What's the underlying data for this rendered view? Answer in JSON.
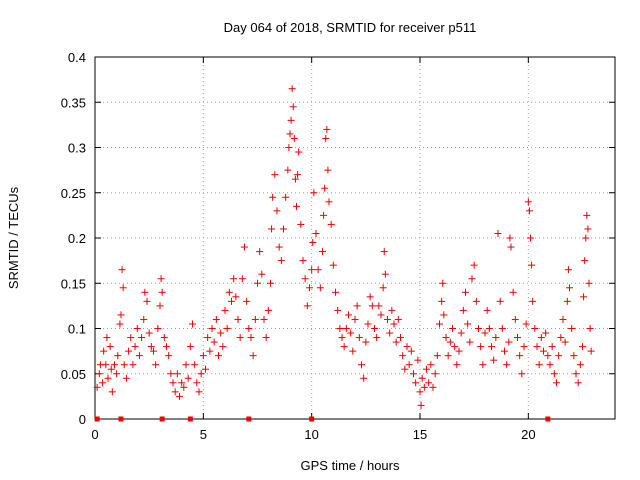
{
  "chart_data": {
    "type": "scatter",
    "title": "Day 064 of 2018, SRMTID for receiver p511",
    "xlabel": "GPS time / hours",
    "ylabel": "SRMTID / TECUs",
    "xlim": [
      0,
      24
    ],
    "ylim": [
      0,
      0.4
    ],
    "xticks": [
      0,
      5,
      10,
      15,
      20
    ],
    "xtick_labels": [
      "0",
      "5",
      "10",
      "15",
      "20"
    ],
    "yticks": [
      0,
      0.05,
      0.1,
      0.15,
      0.2,
      0.25,
      0.3,
      0.35,
      0.4
    ],
    "ytick_labels": [
      "0",
      "0.05",
      "0.1",
      "0.15",
      "0.2",
      "0.25",
      "0.3",
      "0.35",
      "0.4"
    ],
    "grid": true,
    "marker": "+",
    "color": "#ee0000",
    "series": [
      {
        "name": "SRMTID",
        "points": [
          [
            0.1,
            0.035
          ],
          [
            0.2,
            0.05
          ],
          [
            0.25,
            0.06
          ],
          [
            0.35,
            0.04
          ],
          [
            0.4,
            0.075
          ],
          [
            0.5,
            0.06
          ],
          [
            0.55,
            0.09
          ],
          [
            0.6,
            0.045
          ],
          [
            0.7,
            0.08
          ],
          [
            0.75,
            0.055
          ],
          [
            0.8,
            0.03
          ],
          [
            0.9,
            0.06
          ],
          [
            1.0,
            0.05
          ],
          [
            1.05,
            0.07
          ],
          [
            1.15,
            0.105
          ],
          [
            1.2,
            0.115
          ],
          [
            1.25,
            0.165
          ],
          [
            1.3,
            0.145
          ],
          [
            1.35,
            0.06
          ],
          [
            1.45,
            0.045
          ],
          [
            1.55,
            0.075
          ],
          [
            1.65,
            0.09
          ],
          [
            1.75,
            0.06
          ],
          [
            1.85,
            0.08
          ],
          [
            1.95,
            0.1
          ],
          [
            2.05,
            0.07
          ],
          [
            2.15,
            0.09
          ],
          [
            2.25,
            0.11
          ],
          [
            2.3,
            0.14
          ],
          [
            2.4,
            0.13
          ],
          [
            2.5,
            0.095
          ],
          [
            2.6,
            0.08
          ],
          [
            2.7,
            0.075
          ],
          [
            2.8,
            0.06
          ],
          [
            2.9,
            0.1
          ],
          [
            3.0,
            0.125
          ],
          [
            3.05,
            0.155
          ],
          [
            3.1,
            0.14
          ],
          [
            3.2,
            0.09
          ],
          [
            3.3,
            0.08
          ],
          [
            3.4,
            0.07
          ],
          [
            3.5,
            0.05
          ],
          [
            3.6,
            0.04
          ],
          [
            3.7,
            0.03
          ],
          [
            3.8,
            0.05
          ],
          [
            3.9,
            0.025
          ],
          [
            4.0,
            0.04
          ],
          [
            4.1,
            0.035
          ],
          [
            4.2,
            0.06
          ],
          [
            4.3,
            0.045
          ],
          [
            4.4,
            0.08
          ],
          [
            4.5,
            0.105
          ],
          [
            4.6,
            0.06
          ],
          [
            4.7,
            0.04
          ],
          [
            4.8,
            0.03
          ],
          [
            4.9,
            0.05
          ],
          [
            5.0,
            0.07
          ],
          [
            5.1,
            0.055
          ],
          [
            5.2,
            0.09
          ],
          [
            5.3,
            0.075
          ],
          [
            5.4,
            0.1
          ],
          [
            5.5,
            0.085
          ],
          [
            5.6,
            0.11
          ],
          [
            5.7,
            0.07
          ],
          [
            5.8,
            0.095
          ],
          [
            5.9,
            0.08
          ],
          [
            6.0,
            0.12
          ],
          [
            6.1,
            0.1
          ],
          [
            6.2,
            0.14
          ],
          [
            6.3,
            0.13
          ],
          [
            6.4,
            0.155
          ],
          [
            6.5,
            0.135
          ],
          [
            6.6,
            0.11
          ],
          [
            6.7,
            0.09
          ],
          [
            6.8,
            0.155
          ],
          [
            6.9,
            0.19
          ],
          [
            7.0,
            0.13
          ],
          [
            7.1,
            0.1
          ],
          [
            7.2,
            0.09
          ],
          [
            7.3,
            0.07
          ],
          [
            7.4,
            0.11
          ],
          [
            7.5,
            0.15
          ],
          [
            7.6,
            0.185
          ],
          [
            7.7,
            0.16
          ],
          [
            7.8,
            0.11
          ],
          [
            7.9,
            0.09
          ],
          [
            8.0,
            0.12
          ],
          [
            8.1,
            0.15
          ],
          [
            8.15,
            0.21
          ],
          [
            8.2,
            0.245
          ],
          [
            8.3,
            0.27
          ],
          [
            8.4,
            0.23
          ],
          [
            8.5,
            0.19
          ],
          [
            8.6,
            0.175
          ],
          [
            8.7,
            0.21
          ],
          [
            8.8,
            0.245
          ],
          [
            8.9,
            0.275
          ],
          [
            8.95,
            0.3
          ],
          [
            9.0,
            0.315
          ],
          [
            9.05,
            0.33
          ],
          [
            9.1,
            0.365
          ],
          [
            9.15,
            0.345
          ],
          [
            9.2,
            0.31
          ],
          [
            9.25,
            0.265
          ],
          [
            9.3,
            0.235
          ],
          [
            9.35,
            0.27
          ],
          [
            9.4,
            0.295
          ],
          [
            9.5,
            0.215
          ],
          [
            9.6,
            0.175
          ],
          [
            9.7,
            0.155
          ],
          [
            9.8,
            0.125
          ],
          [
            9.9,
            0.145
          ],
          [
            10.0,
            0.165
          ],
          [
            10.05,
            0.195
          ],
          [
            10.1,
            0.25
          ],
          [
            10.2,
            0.205
          ],
          [
            10.3,
            0.165
          ],
          [
            10.4,
            0.145
          ],
          [
            10.5,
            0.185
          ],
          [
            10.55,
            0.225
          ],
          [
            10.6,
            0.255
          ],
          [
            10.65,
            0.31
          ],
          [
            10.7,
            0.32
          ],
          [
            10.75,
            0.275
          ],
          [
            10.8,
            0.24
          ],
          [
            10.9,
            0.215
          ],
          [
            11.0,
            0.17
          ],
          [
            11.1,
            0.14
          ],
          [
            11.2,
            0.12
          ],
          [
            11.3,
            0.1
          ],
          [
            11.4,
            0.09
          ],
          [
            11.5,
            0.08
          ],
          [
            11.6,
            0.1
          ],
          [
            11.7,
            0.115
          ],
          [
            11.8,
            0.095
          ],
          [
            11.9,
            0.075
          ],
          [
            12.0,
            0.11
          ],
          [
            12.1,
            0.125
          ],
          [
            12.2,
            0.09
          ],
          [
            12.3,
            0.06
          ],
          [
            12.4,
            0.045
          ],
          [
            12.5,
            0.085
          ],
          [
            12.6,
            0.105
          ],
          [
            12.7,
            0.135
          ],
          [
            12.8,
            0.125
          ],
          [
            12.9,
            0.1
          ],
          [
            13.0,
            0.09
          ],
          [
            13.1,
            0.125
          ],
          [
            13.2,
            0.115
          ],
          [
            13.3,
            0.145
          ],
          [
            13.35,
            0.185
          ],
          [
            13.4,
            0.16
          ],
          [
            13.5,
            0.11
          ],
          [
            13.6,
            0.095
          ],
          [
            13.7,
            0.12
          ],
          [
            13.8,
            0.105
          ],
          [
            13.9,
            0.085
          ],
          [
            14.0,
            0.11
          ],
          [
            14.1,
            0.09
          ],
          [
            14.2,
            0.07
          ],
          [
            14.3,
            0.055
          ],
          [
            14.4,
            0.08
          ],
          [
            14.5,
            0.06
          ],
          [
            14.6,
            0.075
          ],
          [
            14.7,
            0.05
          ],
          [
            14.8,
            0.04
          ],
          [
            14.9,
            0.065
          ],
          [
            15.0,
            0.03
          ],
          [
            15.05,
            0.015
          ],
          [
            15.1,
            0.045
          ],
          [
            15.2,
            0.035
          ],
          [
            15.3,
            0.055
          ],
          [
            15.4,
            0.04
          ],
          [
            15.5,
            0.06
          ],
          [
            15.6,
            0.035
          ],
          [
            15.7,
            0.05
          ],
          [
            15.8,
            0.07
          ],
          [
            15.9,
            0.105
          ],
          [
            16.0,
            0.13
          ],
          [
            16.05,
            0.15
          ],
          [
            16.1,
            0.115
          ],
          [
            16.2,
            0.09
          ],
          [
            16.3,
            0.07
          ],
          [
            16.4,
            0.085
          ],
          [
            16.5,
            0.1
          ],
          [
            16.6,
            0.08
          ],
          [
            16.7,
            0.06
          ],
          [
            16.8,
            0.075
          ],
          [
            16.9,
            0.095
          ],
          [
            17.0,
            0.12
          ],
          [
            17.1,
            0.14
          ],
          [
            17.2,
            0.105
          ],
          [
            17.3,
            0.085
          ],
          [
            17.4,
            0.155
          ],
          [
            17.5,
            0.17
          ],
          [
            17.6,
            0.13
          ],
          [
            17.7,
            0.1
          ],
          [
            17.8,
            0.08
          ],
          [
            17.9,
            0.06
          ],
          [
            18.0,
            0.095
          ],
          [
            18.1,
            0.12
          ],
          [
            18.2,
            0.1
          ],
          [
            18.3,
            0.08
          ],
          [
            18.4,
            0.065
          ],
          [
            18.5,
            0.09
          ],
          [
            18.6,
            0.205
          ],
          [
            18.7,
            0.13
          ],
          [
            18.8,
            0.1
          ],
          [
            18.9,
            0.075
          ],
          [
            19.0,
            0.06
          ],
          [
            19.1,
            0.085
          ],
          [
            19.15,
            0.2
          ],
          [
            19.2,
            0.19
          ],
          [
            19.3,
            0.14
          ],
          [
            19.4,
            0.11
          ],
          [
            19.5,
            0.09
          ],
          [
            19.6,
            0.07
          ],
          [
            19.7,
            0.05
          ],
          [
            19.8,
            0.08
          ],
          [
            19.9,
            0.105
          ],
          [
            20.0,
            0.24
          ],
          [
            20.05,
            0.23
          ],
          [
            20.1,
            0.2
          ],
          [
            20.15,
            0.17
          ],
          [
            20.2,
            0.13
          ],
          [
            20.3,
            0.1
          ],
          [
            20.4,
            0.08
          ],
          [
            20.5,
            0.06
          ],
          [
            20.6,
            0.09
          ],
          [
            20.7,
            0.075
          ],
          [
            20.8,
            0.095
          ],
          [
            20.9,
            0.07
          ],
          [
            21.0,
            0.06
          ],
          [
            21.1,
            0.08
          ],
          [
            21.2,
            0.05
          ],
          [
            21.3,
            0.04
          ],
          [
            21.4,
            0.07
          ],
          [
            21.5,
            0.09
          ],
          [
            21.6,
            0.11
          ],
          [
            21.7,
            0.085
          ],
          [
            21.8,
            0.13
          ],
          [
            21.85,
            0.165
          ],
          [
            21.9,
            0.145
          ],
          [
            22.0,
            0.1
          ],
          [
            22.1,
            0.07
          ],
          [
            22.2,
            0.05
          ],
          [
            22.3,
            0.04
          ],
          [
            22.4,
            0.06
          ],
          [
            22.5,
            0.08
          ],
          [
            22.55,
            0.135
          ],
          [
            22.6,
            0.175
          ],
          [
            22.65,
            0.2
          ],
          [
            22.7,
            0.225
          ],
          [
            22.75,
            0.21
          ],
          [
            22.8,
            0.15
          ],
          [
            22.85,
            0.1
          ],
          [
            22.9,
            0.075
          ]
        ]
      }
    ],
    "gap_markers_x": [
      0.1,
      1.2,
      3.1,
      4.4,
      7.1,
      10.0,
      20.9
    ]
  }
}
